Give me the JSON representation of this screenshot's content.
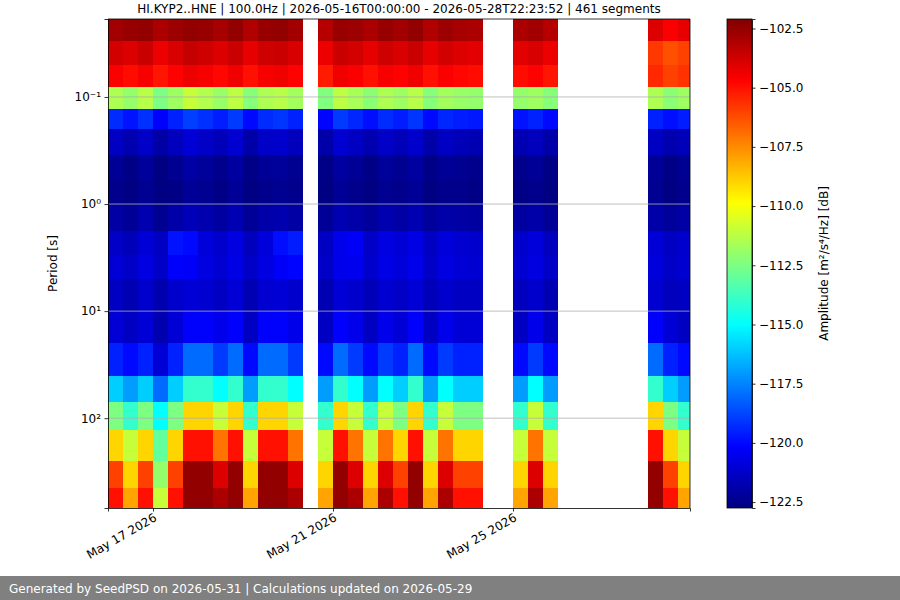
{
  "chart_data": {
    "type": "heatmap",
    "title": "HI.KYP2..HNE | 100.0Hz | 2026-05-16T00:00:00 - 2026-05-28T22:23:52 | 461 segments",
    "ylabel": "Period [s]",
    "colorbar_label": "Amplitude [m²/s⁴/Hz] [dB]",
    "footer": "Generated by SeedPSD on 2026-05-31 | Calculations updated on 2026-05-29",
    "log": "y",
    "grid": "y",
    "xlim": [
      "2026-05-16T00:00:00",
      "2026-05-28T22:23:52"
    ],
    "xticks": [
      {
        "value": "2026-05-17T00:00:00",
        "label": "May 17 2026"
      },
      {
        "value": "2026-05-21T00:00:00",
        "label": "May 21 2026"
      },
      {
        "value": "2026-05-25T00:00:00",
        "label": "May 25 2026"
      }
    ],
    "ylim": [
      0.0187,
      690
    ],
    "yticks": [
      {
        "value": 0.1,
        "label": "10⁻¹"
      },
      {
        "value": 1,
        "label": "10⁰"
      },
      {
        "value": 10,
        "label": "10¹"
      },
      {
        "value": 100,
        "label": "10²"
      }
    ],
    "zlim": [
      -122.75,
      -102.1
    ],
    "zticks": [
      {
        "value": -102.5,
        "label": "−102.5"
      },
      {
        "value": -105,
        "label": "−105.0"
      },
      {
        "value": -107.5,
        "label": "−107.5"
      },
      {
        "value": -110,
        "label": "−110.0"
      },
      {
        "value": -112.5,
        "label": "−112.5"
      },
      {
        "value": -115,
        "label": "−115.0"
      },
      {
        "value": -117.5,
        "label": "−117.5"
      },
      {
        "value": -120,
        "label": "−120.0"
      },
      {
        "value": -122.5,
        "label": "−122.5"
      }
    ],
    "x": [
      "2026-05-16T00:00:00",
      "2026-05-16T08:00:00",
      "2026-05-16T16:00:00",
      "2026-05-17T00:00:00",
      "2026-05-17T08:00:00",
      "2026-05-17T16:00:00",
      "2026-05-18T00:00:00",
      "2026-05-18T08:00:00",
      "2026-05-18T16:00:00",
      "2026-05-19T00:00:00",
      "2026-05-19T08:00:00",
      "2026-05-19T16:00:00",
      "2026-05-20T00:00:00",
      "2026-05-20T08:00:00",
      "2026-05-20T16:00:00",
      "2026-05-21T00:00:00",
      "2026-05-21T08:00:00",
      "2026-05-21T16:00:00",
      "2026-05-22T00:00:00",
      "2026-05-22T08:00:00",
      "2026-05-22T16:00:00",
      "2026-05-23T00:00:00",
      "2026-05-23T08:00:00",
      "2026-05-23T16:00:00",
      "2026-05-24T00:00:00",
      "2026-05-24T08:00:00",
      "2026-05-24T16:00:00",
      "2026-05-25T00:00:00",
      "2026-05-25T08:00:00",
      "2026-05-25T16:00:00",
      "2026-05-26T00:00:00",
      "2026-05-26T08:00:00",
      "2026-05-26T16:00:00",
      "2026-05-27T00:00:00",
      "2026-05-27T08:00:00",
      "2026-05-27T16:00:00",
      "2026-05-28T00:00:00",
      "2026-05-28T08:00:00",
      "2026-05-28T16:00:00",
      "2026-05-28T22:23:52"
    ],
    "y": [
      0.0187,
      0.03,
      0.05,
      0.08,
      0.13,
      0.2,
      0.35,
      0.6,
      1,
      1.8,
      3,
      5,
      10,
      20,
      40,
      70,
      130,
      250,
      450,
      690
    ],
    "values": [
      [
        -102.8,
        -102.6,
        -102.5,
        -103.0,
        -102.7,
        -102.5,
        -102.6,
        -102.9,
        -102.5,
        -103.1,
        -102.6,
        -102.5,
        -102.8,
        null,
        -103.2,
        -102.6,
        -102.7,
        -103.0,
        -102.6,
        -102.8,
        -102.5,
        -103.1,
        -102.7,
        -102.9,
        -103.0,
        null,
        null,
        -103.0,
        -102.8,
        -103.2,
        null,
        null,
        null,
        null,
        null,
        null,
        -104.0,
        -104.6,
        -104.2
      ],
      [
        -103.8,
        -104.0,
        -103.6,
        -104.3,
        -103.9,
        -103.5,
        -103.7,
        -104.0,
        -103.6,
        -104.2,
        -103.7,
        -103.6,
        -103.9,
        null,
        -104.3,
        -103.6,
        -103.8,
        -104.2,
        -103.7,
        -103.9,
        -103.6,
        -104.2,
        -103.8,
        -104.0,
        -104.1,
        null,
        null,
        -104.1,
        -103.9,
        -104.3,
        null,
        null,
        null,
        null,
        null,
        null,
        -105.8,
        -106.3,
        -106.0
      ],
      [
        -104.6,
        -104.9,
        -104.5,
        -105.1,
        -104.7,
        -104.3,
        -104.5,
        -104.8,
        -104.4,
        -105.0,
        -104.5,
        -104.4,
        -104.7,
        null,
        -105.2,
        -104.4,
        -104.6,
        -105.0,
        -104.5,
        -104.7,
        -104.4,
        -105.0,
        -104.6,
        -104.8,
        -104.9,
        null,
        null,
        -104.9,
        -104.7,
        -105.1,
        null,
        null,
        null,
        null,
        null,
        null,
        -105.5,
        -106.0,
        -105.7
      ],
      [
        -111.5,
        -112.0,
        -111.3,
        -112.5,
        -111.8,
        -111.0,
        -111.4,
        -111.9,
        -111.2,
        -112.3,
        -111.5,
        -111.3,
        -111.7,
        null,
        -112.4,
        -111.2,
        -111.6,
        -112.2,
        -111.5,
        -111.8,
        -111.3,
        -112.3,
        -111.7,
        -111.9,
        -112.0,
        null,
        null,
        -112.0,
        -111.8,
        -112.3,
        null,
        null,
        null,
        null,
        null,
        null,
        -111.5,
        -112.2,
        -111.8
      ],
      [
        -119.3,
        -119.8,
        -119.2,
        -120.2,
        -119.5,
        -118.9,
        -119.2,
        -119.6,
        -119.0,
        -120.0,
        -119.3,
        -119.1,
        -119.5,
        null,
        -120.1,
        -119.0,
        -119.4,
        -119.9,
        -119.3,
        -119.6,
        -119.1,
        -120.0,
        -119.4,
        -119.6,
        -119.7,
        null,
        null,
        -119.8,
        -119.5,
        -120.0,
        null,
        null,
        null,
        null,
        null,
        null,
        -119.5,
        -119.9,
        -119.6
      ],
      [
        -121.4,
        -121.8,
        -121.3,
        -122.0,
        -121.5,
        -121.0,
        -121.3,
        -121.6,
        -121.1,
        -121.9,
        -121.3,
        -121.2,
        -121.5,
        null,
        -121.9,
        -121.1,
        -121.4,
        -121.8,
        -121.3,
        -121.6,
        -121.2,
        -121.9,
        -121.4,
        -121.6,
        -121.7,
        null,
        null,
        -121.7,
        -121.5,
        -121.9,
        null,
        null,
        null,
        null,
        null,
        null,
        -121.4,
        -121.8,
        -121.6
      ],
      [
        -122.3,
        -122.6,
        -122.2,
        -122.7,
        -122.4,
        -122.0,
        -122.2,
        -122.5,
        -122.1,
        -122.6,
        -122.3,
        -122.2,
        -122.4,
        null,
        -122.6,
        -122.1,
        -122.3,
        -122.6,
        -122.2,
        -122.4,
        -122.1,
        -122.6,
        -122.3,
        -122.4,
        -122.5,
        null,
        null,
        -122.5,
        -122.3,
        -122.6,
        null,
        null,
        null,
        null,
        null,
        null,
        -122.3,
        -122.6,
        -122.4
      ],
      [
        -122.5,
        -122.7,
        -122.4,
        -122.7,
        -122.6,
        -122.3,
        -122.4,
        -122.6,
        -122.3,
        -122.7,
        -122.5,
        -122.4,
        -122.5,
        null,
        -122.7,
        -122.3,
        -122.5,
        -122.7,
        -122.4,
        -122.5,
        -122.3,
        -122.7,
        -122.5,
        -122.5,
        -122.6,
        null,
        null,
        -122.6,
        -122.5,
        -122.7,
        null,
        null,
        null,
        null,
        null,
        null,
        -122.4,
        -122.7,
        -122.5
      ],
      [
        -122.0,
        -122.3,
        -121.8,
        -122.4,
        -121.9,
        -121.6,
        -121.8,
        -122.1,
        -121.7,
        -122.3,
        -121.9,
        -121.8,
        -122.0,
        null,
        -122.3,
        -121.7,
        -121.9,
        -122.2,
        -121.8,
        -122.0,
        -121.7,
        -122.2,
        -121.9,
        -122.0,
        -122.1,
        null,
        null,
        -122.1,
        -121.9,
        -122.3,
        null,
        null,
        null,
        null,
        null,
        null,
        -121.9,
        -122.2,
        -122.0
      ],
      [
        -121.3,
        -121.6,
        -121.0,
        -121.4,
        -119.8,
        -120.0,
        -120.9,
        -121.2,
        -120.8,
        -121.5,
        -120.9,
        -119.9,
        -119.6,
        null,
        -121.4,
        -120.6,
        -120.3,
        -121.3,
        -120.8,
        -121.0,
        -120.7,
        -121.4,
        -120.9,
        -121.1,
        -121.2,
        null,
        null,
        -121.2,
        -120.9,
        -121.5,
        null,
        null,
        null,
        null,
        null,
        null,
        -121.0,
        -121.4,
        -121.2
      ],
      [
        -121.0,
        -121.3,
        -120.8,
        -121.3,
        -120.2,
        -120.3,
        -120.8,
        -121.1,
        -120.7,
        -121.3,
        -120.8,
        -120.3,
        -120.1,
        null,
        -121.3,
        -120.6,
        -120.5,
        -121.2,
        -120.7,
        -120.9,
        -120.6,
        -121.3,
        -120.8,
        -121.0,
        -121.1,
        null,
        null,
        -121.1,
        -120.8,
        -121.3,
        null,
        null,
        null,
        null,
        null,
        null,
        -120.9,
        -121.3,
        -121.1
      ],
      [
        -121.4,
        -121.7,
        -121.2,
        -121.8,
        -121.2,
        -121.0,
        -121.1,
        -121.4,
        -121.0,
        -121.7,
        -121.1,
        -121.0,
        -121.2,
        null,
        -121.7,
        -121.0,
        -121.2,
        -121.6,
        -121.1,
        -121.3,
        -121.0,
        -121.6,
        -121.2,
        -121.4,
        -121.4,
        null,
        null,
        -121.5,
        -121.2,
        -121.7,
        null,
        null,
        null,
        null,
        null,
        null,
        -121.1,
        -121.5,
        -121.4
      ],
      [
        -121.0,
        -121.4,
        -121.0,
        -121.8,
        -121.0,
        -120.2,
        -120.2,
        -120.6,
        -120.2,
        -121.4,
        -120.2,
        -120.2,
        -120.6,
        null,
        -121.4,
        -120.2,
        -120.6,
        -121.4,
        -120.6,
        -121.0,
        -120.2,
        -121.4,
        -120.6,
        -121.0,
        -121.0,
        null,
        null,
        -121.4,
        -120.6,
        -121.4,
        null,
        null,
        null,
        null,
        null,
        null,
        -120.2,
        -121.0,
        -121.4
      ],
      [
        -119.5,
        -120.0,
        -119.5,
        -121.0,
        -119.5,
        -118.0,
        -118.0,
        -119.0,
        -118.0,
        -120.0,
        -118.0,
        -118.0,
        -119.0,
        null,
        -120.0,
        -118.0,
        -119.0,
        -120.0,
        -119.0,
        -119.5,
        -118.0,
        -120.0,
        -119.0,
        -119.5,
        -119.5,
        null,
        null,
        -120.0,
        -119.0,
        -120.0,
        null,
        null,
        null,
        null,
        null,
        null,
        -118.0,
        -119.5,
        -120.0
      ],
      [
        -116.0,
        -117.0,
        -116.0,
        -118.0,
        -116.0,
        -114.0,
        -114.0,
        -115.0,
        -114.0,
        -117.0,
        -114.0,
        -114.0,
        -115.0,
        null,
        -117.0,
        -114.0,
        -115.0,
        -117.0,
        -115.0,
        -116.0,
        -114.0,
        -117.0,
        -115.0,
        -116.0,
        -116.0,
        null,
        null,
        -117.0,
        -115.0,
        -117.0,
        null,
        null,
        null,
        null,
        null,
        null,
        -114.0,
        -116.0,
        -117.0
      ],
      [
        -112.5,
        -114.0,
        -112.5,
        -115.0,
        -112.5,
        -109.0,
        -109.0,
        -111.0,
        -109.0,
        -114.0,
        -109.0,
        -109.0,
        -111.0,
        null,
        -114.0,
        -109.0,
        -111.0,
        -114.0,
        -111.0,
        -112.5,
        -109.0,
        -114.0,
        -111.0,
        -112.5,
        -112.5,
        null,
        null,
        -114.0,
        -111.0,
        -114.0,
        null,
        null,
        null,
        null,
        null,
        null,
        -109.0,
        -112.5,
        -114.0
      ],
      [
        -109.0,
        -111.0,
        -109.0,
        -113.0,
        -109.0,
        -105.0,
        -105.0,
        -107.0,
        -105.0,
        -111.0,
        -105.0,
        -105.0,
        -107.0,
        null,
        -111.0,
        -105.0,
        -107.0,
        -111.0,
        -107.0,
        -109.0,
        -105.0,
        -111.0,
        -107.0,
        -109.0,
        -109.0,
        null,
        null,
        -111.0,
        -107.0,
        -111.0,
        null,
        null,
        null,
        null,
        null,
        null,
        -105.0,
        -109.0,
        -111.0
      ],
      [
        -106.0,
        -109.0,
        -106.0,
        -112.0,
        -106.0,
        -102.5,
        -102.5,
        -104.0,
        -102.5,
        -109.0,
        -102.5,
        -102.5,
        -104.0,
        null,
        -109.0,
        -102.5,
        -104.0,
        -109.0,
        -104.0,
        -106.0,
        -102.5,
        -109.0,
        -104.0,
        -106.0,
        -106.0,
        null,
        null,
        -109.0,
        -104.0,
        -109.0,
        null,
        null,
        null,
        null,
        null,
        null,
        -102.5,
        -106.0,
        -109.0
      ],
      [
        -105.0,
        -108.0,
        -105.0,
        -111.0,
        -105.0,
        -102.5,
        -102.5,
        -103.0,
        -102.5,
        -108.0,
        -102.5,
        -102.5,
        -103.0,
        null,
        -108.0,
        -102.5,
        -103.0,
        -108.0,
        -103.0,
        -105.0,
        -102.5,
        -108.0,
        -103.0,
        -105.0,
        -105.0,
        null,
        null,
        -108.0,
        -103.0,
        -108.0,
        null,
        null,
        null,
        null,
        null,
        null,
        -102.5,
        -105.0,
        -108.0
      ]
    ]
  }
}
